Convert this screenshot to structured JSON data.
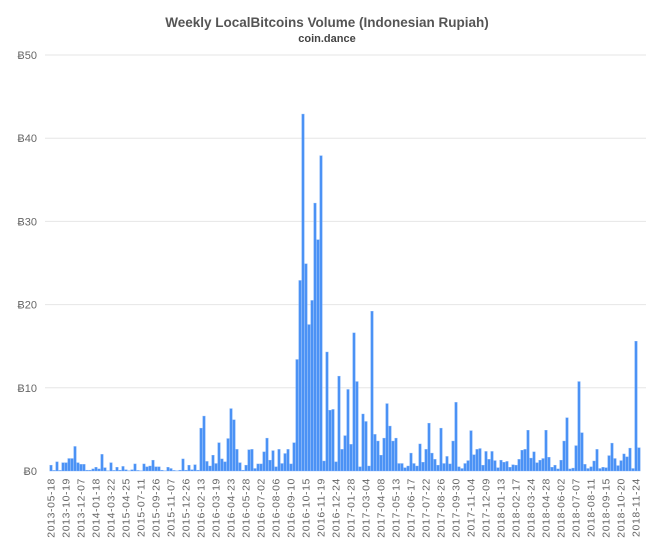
{
  "chart_data": {
    "type": "bar",
    "title": "Weekly LocalBitcoins Volume (Indonesian Rupiah)",
    "subtitle": "coin.dance",
    "xlabel": "",
    "ylabel": "",
    "y_prefix": "Ƀ",
    "ylim": [
      0,
      50
    ],
    "y_ticks": [
      0,
      10,
      20,
      30,
      40,
      50
    ],
    "y_tick_labels": [
      "Ƀ0",
      "Ƀ10",
      "Ƀ20",
      "Ƀ30",
      "Ƀ40",
      "Ƀ50"
    ],
    "grid": true,
    "legend": "none",
    "bar_color": "#4b92f5",
    "x_tick_every": 5,
    "x_tick_labels": [
      "2013-05-18",
      "2013-10-19",
      "2013-12-07",
      "2014-01-18",
      "2014-03-22",
      "2015-04-25",
      "2015-07-11",
      "2015-09-26",
      "2015-11-07",
      "2015-12-26",
      "2016-02-13",
      "2016-03-19",
      "2016-04-23",
      "2016-05-28",
      "2016-07-02",
      "2016-08-06",
      "2016-09-10",
      "2016-10-15",
      "2016-11-19",
      "2016-12-24",
      "2017-01-28",
      "2017-03-04",
      "2017-04-08",
      "2017-05-13",
      "2017-06-17",
      "2017-07-22",
      "2017-08-26",
      "2017-09-30",
      "2017-11-04",
      "2017-12-09",
      "2018-01-13",
      "2018-02-17",
      "2018-03-24",
      "2018-04-28",
      "2018-06-02",
      "2018-07-07",
      "2018-08-11",
      "2018-09-15",
      "2018-10-20",
      "2018-11-24"
    ],
    "values": [
      0.7,
      0.05,
      1.1,
      0.05,
      1.0,
      1.0,
      1.5,
      1.5,
      2.95,
      1.0,
      0.8,
      0.8,
      0.1,
      0.1,
      0.25,
      0.45,
      0.25,
      2.0,
      0.4,
      0,
      1.0,
      0.05,
      0.45,
      0.1,
      0.55,
      0.15,
      0,
      0.15,
      0.85,
      0.05,
      0,
      0.85,
      0.5,
      0.6,
      1.3,
      0.5,
      0.5,
      0.1,
      0,
      0.45,
      0.3,
      0.05,
      0,
      0.1,
      1.45,
      0.1,
      0.7,
      0.15,
      0.75,
      0.1,
      5.15,
      6.6,
      1.15,
      0.6,
      1.9,
      0.9,
      3.4,
      1.45,
      1.1,
      3.9,
      7.5,
      6.15,
      2.6,
      1.0,
      0.1,
      0.7,
      2.55,
      2.6,
      0.3,
      0.85,
      0.85,
      2.3,
      3.95,
      1.3,
      2.45,
      0.5,
      2.6,
      0.9,
      2.1,
      2.6,
      0.85,
      3.4,
      13.4,
      22.9,
      42.9,
      24.9,
      17.6,
      20.5,
      32.2,
      27.8,
      37.9,
      1.2,
      14.3,
      7.3,
      7.4,
      1.1,
      11.4,
      2.6,
      4.25,
      9.8,
      3.2,
      16.6,
      10.75,
      0.5,
      6.85,
      5.95,
      0.6,
      19.2,
      4.4,
      3.6,
      1.9,
      3.95,
      8.1,
      5.4,
      3.6,
      3.95,
      0.9,
      0.9,
      0.4,
      0.6,
      2.15,
      0.9,
      0.6,
      3.25,
      1.05,
      2.6,
      5.75,
      2.15,
      1.4,
      0.7,
      5.15,
      0.9,
      1.75,
      0.85,
      3.6,
      8.25,
      0.5,
      0.3,
      0.9,
      1.25,
      4.85,
      1.95,
      2.6,
      2.7,
      0.7,
      2.35,
      1.4,
      2.35,
      1.25,
      0.4,
      1.3,
      1.05,
      1.15,
      0.45,
      0.75,
      0.7,
      1.4,
      2.5,
      2.6,
      4.9,
      1.55,
      2.3,
      1.0,
      1.3,
      1.5,
      4.9,
      1.65,
      0.45,
      0.7,
      0.25,
      1.3,
      3.6,
      6.4,
      0.25,
      0.35,
      3.05,
      10.75,
      4.6,
      0.8,
      0.3,
      0.5,
      1.2,
      2.6,
      0.3,
      0.45,
      0.4,
      1.85,
      3.35,
      1.5,
      0.65,
      1.25,
      2.05,
      1.7,
      2.75,
      0.3,
      15.6,
      2.8
    ]
  }
}
